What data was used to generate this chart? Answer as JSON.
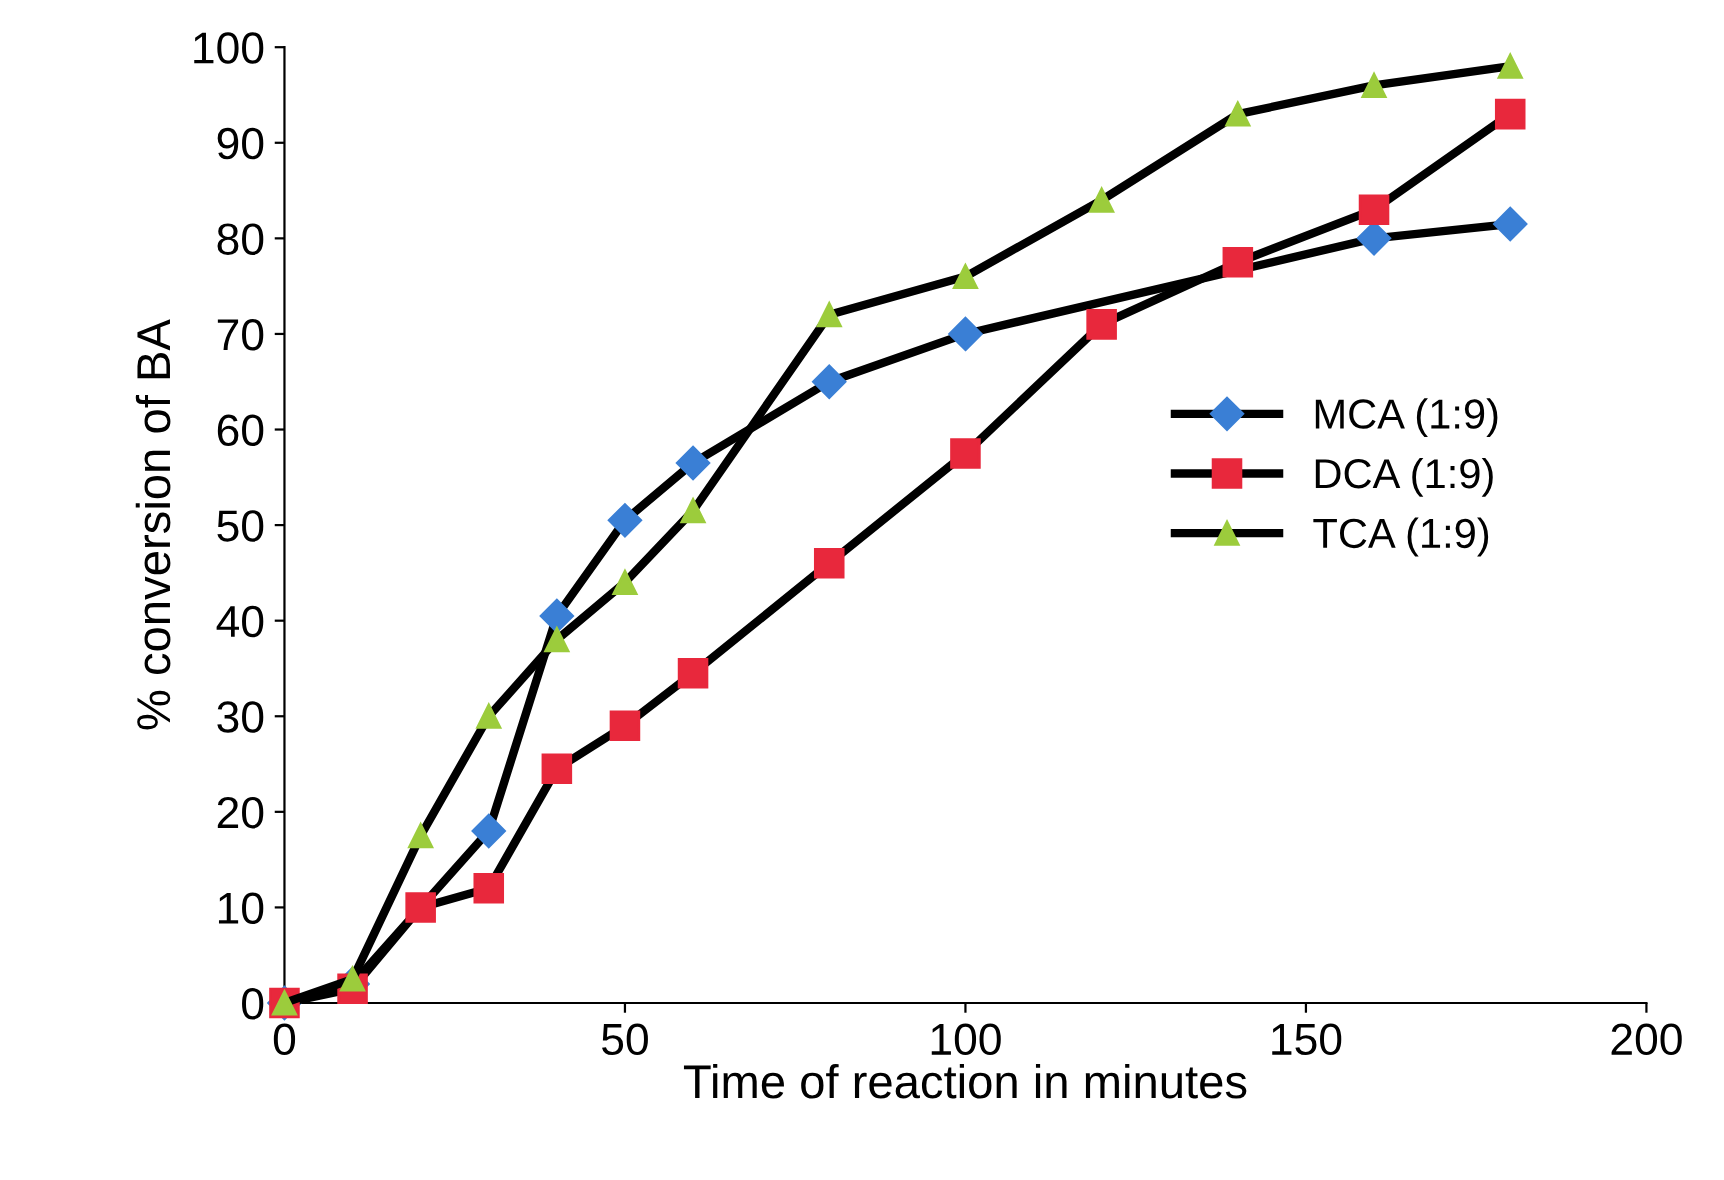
{
  "chart_data": {
    "type": "line",
    "xlabel": "Time of reaction in minutes",
    "ylabel": "% conversion of BA",
    "xlim": [
      0,
      200
    ],
    "xticks": [
      0,
      50,
      100,
      150,
      200
    ],
    "ylim": [
      0,
      100
    ],
    "yticks": [
      0,
      10,
      20,
      30,
      40,
      50,
      60,
      70,
      80,
      90,
      100
    ],
    "grid": false,
    "legend": "right",
    "line_style": "solid",
    "x": [
      0,
      10,
      20,
      30,
      40,
      50,
      60,
      80,
      100,
      120,
      140,
      160,
      180
    ],
    "series": [
      {
        "name": "MCA (1:9)",
        "color": "#3a7fd5",
        "marker": "diamond",
        "values": [
          0,
          2,
          null,
          18,
          40.5,
          50.5,
          56.5,
          65,
          70,
          null,
          null,
          80,
          81.5
        ]
      },
      {
        "name": "DCA (1:9)",
        "color": "#e8283c",
        "marker": "square",
        "values": [
          0,
          1.5,
          10,
          12,
          24.5,
          29,
          34.5,
          46,
          57.5,
          71,
          77.5,
          83,
          93
        ]
      },
      {
        "name": "TCA (1:9)",
        "color": "#9ccc3c",
        "marker": "triangle",
        "values": [
          0,
          2.5,
          17.5,
          30,
          38,
          44,
          51.5,
          72,
          76,
          84,
          93,
          96,
          98
        ]
      }
    ]
  }
}
